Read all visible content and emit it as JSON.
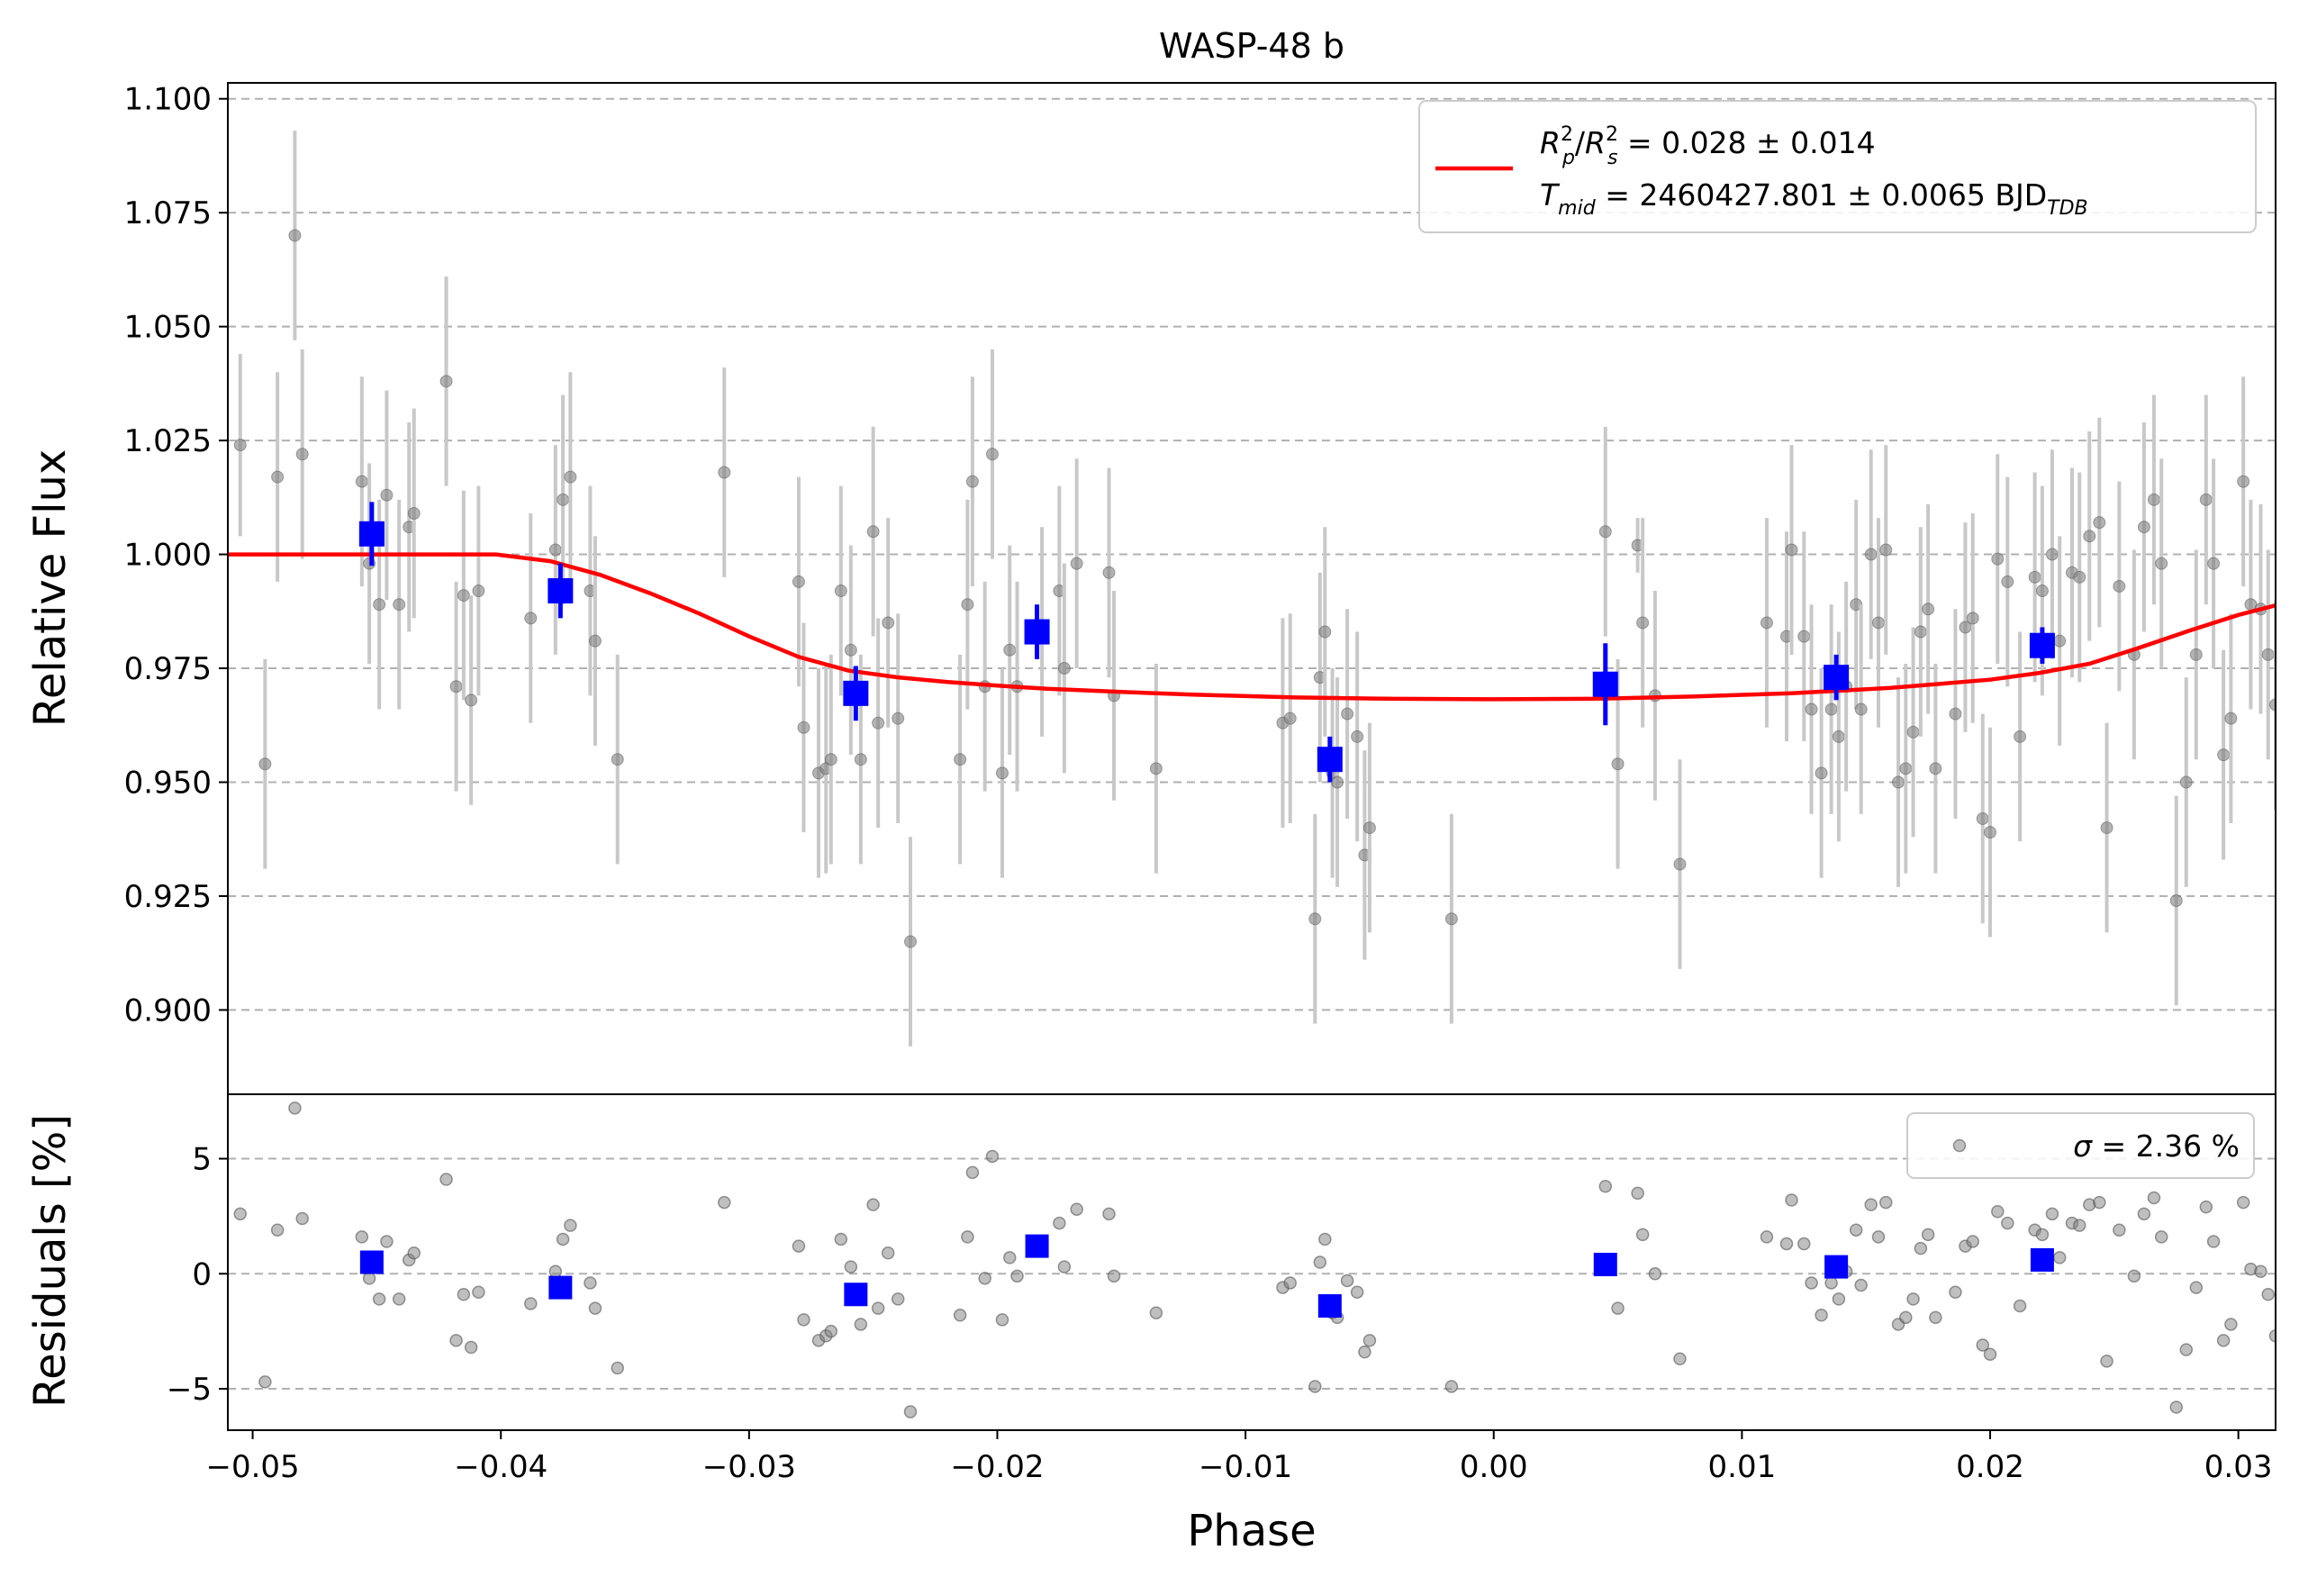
{
  "chart_data": {
    "type": "scatter",
    "title": "WASP-48 b",
    "xlabel": "Phase",
    "x_ticks": [
      "−0.05",
      "−0.04",
      "−0.03",
      "−0.02",
      "−0.01",
      "0.00",
      "0.01",
      "0.02",
      "0.03"
    ],
    "x_tick_values": [
      -0.05,
      -0.04,
      -0.03,
      -0.02,
      -0.01,
      0.0,
      0.01,
      0.02,
      0.03
    ],
    "xlim": [
      -0.051,
      0.0315
    ],
    "top_panel": {
      "ylabel": "Relative Flux",
      "ylim": [
        0.8815,
        1.1035
      ],
      "y_ticks": [
        "0.900",
        "0.925",
        "0.950",
        "0.975",
        "1.000",
        "1.025",
        "1.050",
        "1.075",
        "1.100"
      ],
      "y_tick_values": [
        0.9,
        0.925,
        0.95,
        0.975,
        1.0,
        1.025,
        1.05,
        1.075,
        1.1
      ],
      "grid": "horizontal dashed",
      "legend": {
        "placement": "top-right",
        "line_label_1": "= 0.028 ± 0.014",
        "line_label_2": "= 2460427.801 ± 0.0065 BJD",
        "rp_main": "R",
        "rp_sup": "2",
        "rp_sub": "p",
        "rs_main": "R",
        "rs_sup": "2",
        "rs_sub": "s",
        "t_main": "T",
        "t_sub": "mid",
        "bjd_sub": "TDB"
      },
      "raw_points": [
        [
          -0.0505,
          1.024,
          0.02
        ],
        [
          -0.0495,
          0.954,
          0.023
        ],
        [
          -0.049,
          1.017,
          0.023
        ],
        [
          -0.0483,
          1.07,
          0.023
        ],
        [
          -0.048,
          1.022,
          0.023
        ],
        [
          -0.0456,
          1.016,
          0.023
        ],
        [
          -0.0453,
          0.998,
          0.022
        ],
        [
          -0.0449,
          0.989,
          0.023
        ],
        [
          -0.0446,
          1.013,
          0.023
        ],
        [
          -0.0441,
          0.989,
          0.023
        ],
        [
          -0.0437,
          1.006,
          0.023
        ],
        [
          -0.0435,
          1.009,
          0.023
        ],
        [
          -0.0422,
          1.038,
          0.023
        ],
        [
          -0.0418,
          0.971,
          0.023
        ],
        [
          -0.0415,
          0.991,
          0.023
        ],
        [
          -0.0412,
          0.968,
          0.023
        ],
        [
          -0.0409,
          0.992,
          0.023
        ],
        [
          -0.0388,
          0.986,
          0.023
        ],
        [
          -0.0378,
          1.001,
          0.023
        ],
        [
          -0.0375,
          1.012,
          0.023
        ],
        [
          -0.0372,
          1.017,
          0.023
        ],
        [
          -0.0364,
          0.992,
          0.023
        ],
        [
          -0.0362,
          0.981,
          0.023
        ],
        [
          -0.0353,
          0.955,
          0.023
        ],
        [
          -0.031,
          1.018,
          0.023
        ],
        [
          -0.028,
          0.994,
          0.023
        ],
        [
          -0.0278,
          0.962,
          0.023
        ],
        [
          -0.0272,
          0.952,
          0.023
        ],
        [
          -0.0269,
          0.953,
          0.023
        ],
        [
          -0.0267,
          0.955,
          0.023
        ],
        [
          -0.0263,
          0.992,
          0.023
        ],
        [
          -0.0259,
          0.979,
          0.023
        ],
        [
          -0.0255,
          0.955,
          0.023
        ],
        [
          -0.025,
          1.005,
          0.023
        ],
        [
          -0.0248,
          0.963,
          0.023
        ],
        [
          -0.0244,
          0.985,
          0.023
        ],
        [
          -0.024,
          0.964,
          0.023
        ],
        [
          -0.0235,
          0.915,
          0.023
        ],
        [
          -0.0215,
          0.955,
          0.023
        ],
        [
          -0.0212,
          0.989,
          0.023
        ],
        [
          -0.021,
          1.016,
          0.023
        ],
        [
          -0.0205,
          0.971,
          0.023
        ],
        [
          -0.0202,
          1.022,
          0.023
        ],
        [
          -0.0198,
          0.952,
          0.023
        ],
        [
          -0.0195,
          0.979,
          0.023
        ],
        [
          -0.0192,
          0.971,
          0.023
        ],
        [
          -0.0182,
          0.983,
          0.023
        ],
        [
          -0.0175,
          0.992,
          0.023
        ],
        [
          -0.0173,
          0.975,
          0.023
        ],
        [
          -0.0168,
          0.998,
          0.023
        ],
        [
          -0.0155,
          0.996,
          0.023
        ],
        [
          -0.0153,
          0.969,
          0.023
        ],
        [
          -0.0136,
          0.953,
          0.023
        ],
        [
          -0.0085,
          0.963,
          0.023
        ],
        [
          -0.0082,
          0.964,
          0.023
        ],
        [
          -0.0072,
          0.92,
          0.023
        ],
        [
          -0.007,
          0.973,
          0.023
        ],
        [
          -0.0068,
          0.983,
          0.023
        ],
        [
          -0.0065,
          0.952,
          0.023
        ],
        [
          -0.0063,
          0.95,
          0.023
        ],
        [
          -0.0059,
          0.965,
          0.023
        ],
        [
          -0.0055,
          0.96,
          0.023
        ],
        [
          -0.0052,
          0.934,
          0.023
        ],
        [
          -0.005,
          0.94,
          0.023
        ],
        [
          -0.0017,
          0.92,
          0.023
        ],
        [
          0.0045,
          1.005,
          0.023
        ],
        [
          0.005,
          0.954,
          0.023
        ],
        [
          0.0058,
          1.002,
          0.006
        ],
        [
          0.006,
          0.985,
          0.023
        ],
        [
          0.0065,
          0.969,
          0.023
        ],
        [
          0.0075,
          0.932,
          0.023
        ],
        [
          0.011,
          0.985,
          0.023
        ],
        [
          0.0118,
          0.982,
          0.023
        ],
        [
          0.012,
          1.001,
          0.023
        ],
        [
          0.0125,
          0.982,
          0.023
        ],
        [
          0.0128,
          0.966,
          0.023
        ],
        [
          0.0132,
          0.952,
          0.023
        ],
        [
          0.0136,
          0.966,
          0.023
        ],
        [
          0.0139,
          0.96,
          0.023
        ],
        [
          0.0142,
          0.971,
          0.023
        ],
        [
          0.0146,
          0.989,
          0.023
        ],
        [
          0.0148,
          0.966,
          0.023
        ],
        [
          0.0152,
          1.0,
          0.023
        ],
        [
          0.0155,
          0.985,
          0.023
        ],
        [
          0.0158,
          1.001,
          0.023
        ],
        [
          0.0163,
          0.95,
          0.023
        ],
        [
          0.0166,
          0.953,
          0.023
        ],
        [
          0.0169,
          0.961,
          0.023
        ],
        [
          0.0172,
          0.983,
          0.023
        ],
        [
          0.0175,
          0.988,
          0.023
        ],
        [
          0.0178,
          0.953,
          0.023
        ],
        [
          0.0186,
          0.965,
          0.023
        ],
        [
          0.019,
          0.984,
          0.023
        ],
        [
          0.0193,
          0.986,
          0.023
        ],
        [
          0.0197,
          0.942,
          0.023
        ],
        [
          0.02,
          0.939,
          0.023
        ],
        [
          0.0203,
          0.999,
          0.023
        ],
        [
          0.0207,
          0.994,
          0.023
        ],
        [
          0.0212,
          0.96,
          0.023
        ],
        [
          0.0218,
          0.995,
          0.023
        ],
        [
          0.0221,
          0.992,
          0.023
        ],
        [
          0.0225,
          1.0,
          0.023
        ],
        [
          0.0228,
          0.981,
          0.023
        ],
        [
          0.0233,
          0.996,
          0.023
        ],
        [
          0.0236,
          0.995,
          0.023
        ],
        [
          0.024,
          1.004,
          0.023
        ],
        [
          0.0244,
          1.007,
          0.023
        ],
        [
          0.0247,
          0.94,
          0.023
        ],
        [
          0.0252,
          0.993,
          0.023
        ],
        [
          0.0258,
          0.978,
          0.023
        ],
        [
          0.0262,
          1.006,
          0.023
        ],
        [
          0.0266,
          1.012,
          0.023
        ],
        [
          0.0269,
          0.998,
          0.023
        ],
        [
          0.0275,
          0.924,
          0.023
        ],
        [
          0.0279,
          0.95,
          0.023
        ],
        [
          0.0283,
          0.978,
          0.023
        ],
        [
          0.0287,
          1.012,
          0.023
        ],
        [
          0.029,
          0.998,
          0.023
        ],
        [
          0.0294,
          0.956,
          0.023
        ],
        [
          0.0297,
          0.964,
          0.023
        ],
        [
          0.0302,
          1.016,
          0.023
        ],
        [
          0.0305,
          0.989,
          0.023
        ],
        [
          0.0309,
          0.988,
          0.023
        ],
        [
          0.0312,
          0.978,
          0.023
        ],
        [
          0.0315,
          0.967,
          0.023
        ]
      ],
      "binned_points": [
        [
          -0.0452,
          1.0045,
          0.007
        ],
        [
          -0.0376,
          0.992,
          0.006
        ],
        [
          -0.0257,
          0.9695,
          0.006
        ],
        [
          -0.0184,
          0.983,
          0.006
        ],
        [
          -0.0066,
          0.955,
          0.005
        ],
        [
          0.0045,
          0.9715,
          0.009
        ],
        [
          0.0138,
          0.973,
          0.005
        ],
        [
          0.0221,
          0.98,
          0.004
        ]
      ],
      "model": {
        "x": [
          -0.051,
          -0.0402,
          -0.038,
          -0.036,
          -0.034,
          -0.032,
          -0.03,
          -0.028,
          -0.026,
          -0.024,
          -0.022,
          -0.02,
          -0.018,
          -0.015,
          -0.012,
          -0.008,
          -0.004,
          0.0,
          0.004,
          0.008,
          0.012,
          0.016,
          0.02,
          0.022,
          0.024,
          0.026,
          0.028,
          0.03,
          0.0315
        ],
        "y": [
          1.0,
          1.0,
          0.9985,
          0.9955,
          0.9915,
          0.987,
          0.982,
          0.9775,
          0.9745,
          0.973,
          0.972,
          0.9712,
          0.9705,
          0.9698,
          0.9692,
          0.9686,
          0.9683,
          0.9682,
          0.9683,
          0.9688,
          0.9695,
          0.9707,
          0.9725,
          0.974,
          0.976,
          0.9795,
          0.9832,
          0.9867,
          0.9888
        ]
      }
    },
    "bottom_panel": {
      "ylabel": "Residuals [%]",
      "ylim": [
        -6.8,
        7.8
      ],
      "y_ticks": [
        "−5",
        "0",
        "5"
      ],
      "y_tick_values": [
        -5,
        0,
        5
      ],
      "grid": "horizontal dashed",
      "legend": {
        "placement": "top-right",
        "label": "= 2.36 %",
        "symbol": "σ"
      },
      "raw_points": [
        [
          -0.0505,
          2.6
        ],
        [
          -0.0495,
          -4.7
        ],
        [
          -0.049,
          1.9
        ],
        [
          -0.0483,
          7.2
        ],
        [
          -0.048,
          2.4
        ],
        [
          -0.0456,
          1.6
        ],
        [
          -0.0453,
          -0.2
        ],
        [
          -0.0449,
          -1.1
        ],
        [
          -0.0446,
          1.4
        ],
        [
          -0.0441,
          -1.1
        ],
        [
          -0.0437,
          0.6
        ],
        [
          -0.0435,
          0.9
        ],
        [
          -0.0422,
          4.1
        ],
        [
          -0.0418,
          -2.9
        ],
        [
          -0.0415,
          -0.9
        ],
        [
          -0.0412,
          -3.2
        ],
        [
          -0.0409,
          -0.8
        ],
        [
          -0.0388,
          -1.3
        ],
        [
          -0.0378,
          0.1
        ],
        [
          -0.0375,
          1.5
        ],
        [
          -0.0372,
          2.1
        ],
        [
          -0.0364,
          -0.4
        ],
        [
          -0.0362,
          -1.5
        ],
        [
          -0.0353,
          -4.1
        ],
        [
          -0.031,
          3.1
        ],
        [
          -0.028,
          1.2
        ],
        [
          -0.0278,
          -2.0
        ],
        [
          -0.0272,
          -2.9
        ],
        [
          -0.0269,
          -2.7
        ],
        [
          -0.0267,
          -2.5
        ],
        [
          -0.0263,
          1.5
        ],
        [
          -0.0259,
          0.3
        ],
        [
          -0.0255,
          -2.2
        ],
        [
          -0.025,
          3.0
        ],
        [
          -0.0248,
          -1.5
        ],
        [
          -0.0244,
          0.9
        ],
        [
          -0.024,
          -1.1
        ],
        [
          -0.0235,
          -6.0
        ],
        [
          -0.0215,
          -1.8
        ],
        [
          -0.0212,
          1.6
        ],
        [
          -0.021,
          4.4
        ],
        [
          -0.0205,
          -0.2
        ],
        [
          -0.0202,
          5.1
        ],
        [
          -0.0198,
          -2.0
        ],
        [
          -0.0195,
          0.7
        ],
        [
          -0.0192,
          -0.1
        ],
        [
          -0.0182,
          1.2
        ],
        [
          -0.0175,
          2.2
        ],
        [
          -0.0173,
          0.3
        ],
        [
          -0.0168,
          2.8
        ],
        [
          -0.0155,
          2.6
        ],
        [
          -0.0153,
          -0.1
        ],
        [
          -0.0136,
          -1.7
        ],
        [
          -0.0085,
          -0.6
        ],
        [
          -0.0082,
          -0.4
        ],
        [
          -0.0072,
          -4.9
        ],
        [
          -0.007,
          0.5
        ],
        [
          -0.0068,
          1.5
        ],
        [
          -0.0065,
          -1.7
        ],
        [
          -0.0063,
          -1.9
        ],
        [
          -0.0059,
          -0.3
        ],
        [
          -0.0055,
          -0.8
        ],
        [
          -0.0052,
          -3.4
        ],
        [
          -0.005,
          -2.9
        ],
        [
          -0.0017,
          -4.9
        ],
        [
          0.0045,
          3.8
        ],
        [
          0.005,
          -1.5
        ],
        [
          0.0058,
          3.5
        ],
        [
          0.006,
          1.7
        ],
        [
          0.0065,
          0.0
        ],
        [
          0.0075,
          -3.7
        ],
        [
          0.011,
          1.6
        ],
        [
          0.0118,
          1.3
        ],
        [
          0.012,
          3.2
        ],
        [
          0.0125,
          1.3
        ],
        [
          0.0128,
          -0.4
        ],
        [
          0.0132,
          -1.8
        ],
        [
          0.0136,
          -0.4
        ],
        [
          0.0139,
          -1.1
        ],
        [
          0.0142,
          0.1
        ],
        [
          0.0146,
          1.9
        ],
        [
          0.0148,
          -0.5
        ],
        [
          0.0152,
          3.0
        ],
        [
          0.0155,
          1.6
        ],
        [
          0.0158,
          3.1
        ],
        [
          0.0163,
          -2.2
        ],
        [
          0.0166,
          -1.9
        ],
        [
          0.0169,
          -1.1
        ],
        [
          0.0172,
          1.1
        ],
        [
          0.0175,
          1.7
        ],
        [
          0.0178,
          -1.9
        ],
        [
          0.0186,
          -0.8
        ],
        [
          0.019,
          1.2
        ],
        [
          0.0193,
          1.4
        ],
        [
          0.0197,
          -3.1
        ],
        [
          0.02,
          -3.5
        ],
        [
          0.0203,
          2.7
        ],
        [
          0.0207,
          2.2
        ],
        [
          0.0212,
          -1.4
        ],
        [
          0.0218,
          1.9
        ],
        [
          0.0221,
          1.7
        ],
        [
          0.0225,
          2.6
        ],
        [
          0.0228,
          0.7
        ],
        [
          0.0233,
          2.2
        ],
        [
          0.0236,
          2.1
        ],
        [
          0.024,
          3.0
        ],
        [
          0.0244,
          3.1
        ],
        [
          0.0247,
          -3.8
        ],
        [
          0.0252,
          1.9
        ],
        [
          0.0258,
          -0.1
        ],
        [
          0.0262,
          2.6
        ],
        [
          0.0266,
          3.3
        ],
        [
          0.0269,
          1.6
        ],
        [
          0.0275,
          -5.8
        ],
        [
          0.0279,
          -3.3
        ],
        [
          0.0283,
          -0.6
        ],
        [
          0.0287,
          2.9
        ],
        [
          0.029,
          1.4
        ],
        [
          0.0294,
          -2.9
        ],
        [
          0.0297,
          -2.2
        ],
        [
          0.0302,
          3.1
        ],
        [
          0.0305,
          0.2
        ],
        [
          0.0309,
          0.1
        ],
        [
          0.0312,
          -0.9
        ],
        [
          0.0315,
          -2.7
        ]
      ],
      "binned_points": [
        [
          -0.0452,
          0.5
        ],
        [
          -0.0376,
          -0.6
        ],
        [
          -0.0257,
          -0.9
        ],
        [
          -0.0184,
          1.2
        ],
        [
          -0.0066,
          -1.4
        ],
        [
          0.0045,
          0.4
        ],
        [
          0.0138,
          0.3
        ],
        [
          0.0221,
          0.6
        ]
      ]
    },
    "colors": {
      "model": "#ff0000",
      "binned": "#0000ff",
      "raw": "#808080",
      "errorbar": "#c8c8c8",
      "grid": "#b0b0b0"
    }
  }
}
